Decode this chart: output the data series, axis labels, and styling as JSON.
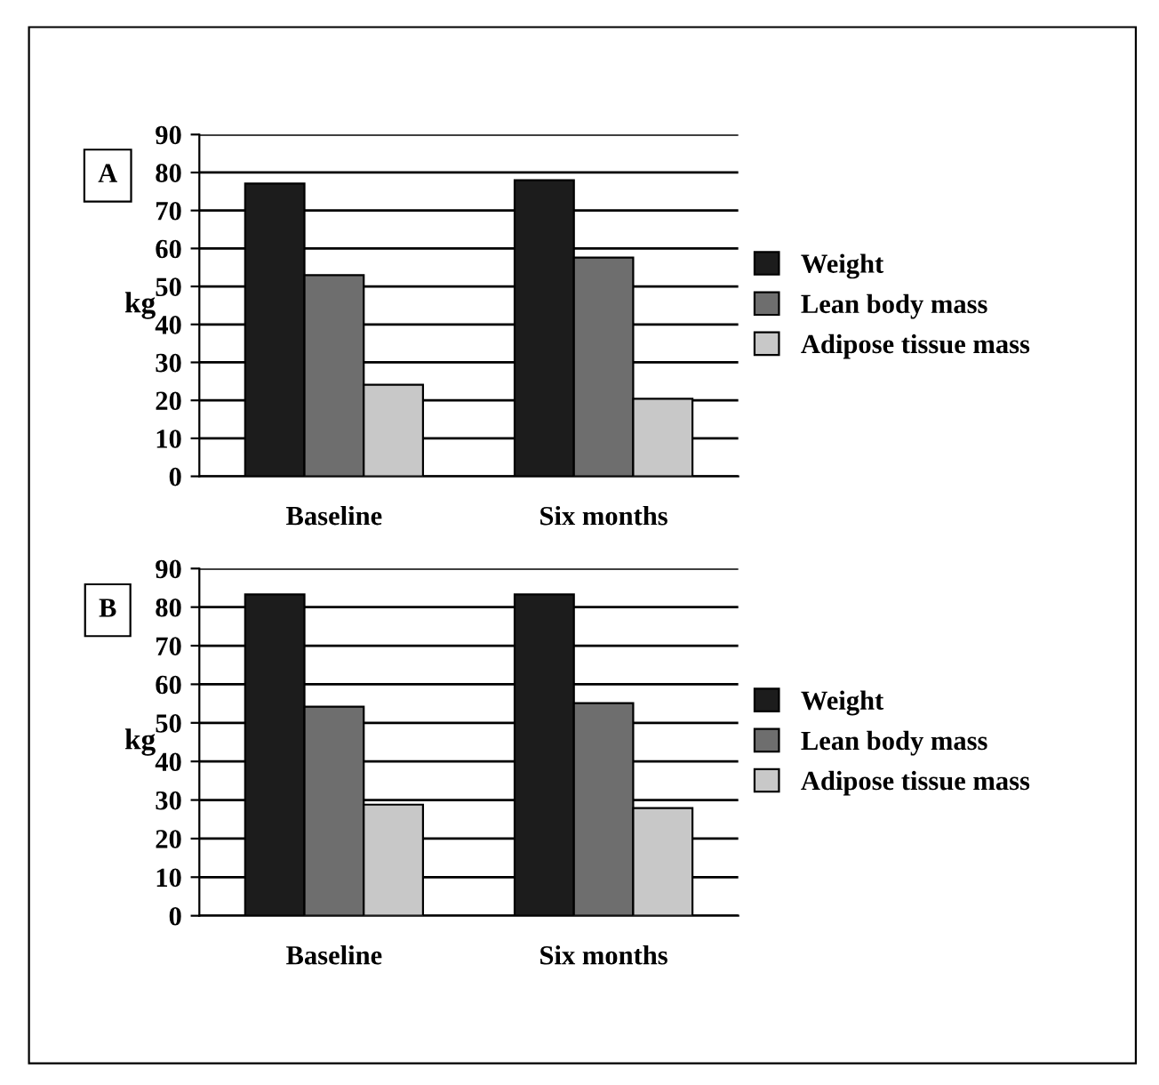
{
  "chart_data": [
    {
      "type": "bar",
      "title": "A",
      "ylabel": "kg",
      "categories": [
        "Baseline",
        "Six months"
      ],
      "series": [
        {
          "name": "Weight",
          "color": "#1c1c1c",
          "values": [
            77.1,
            78
          ]
        },
        {
          "name": "Lean body mass",
          "color": "#6e6e6e",
          "values": [
            53,
            57.6
          ]
        },
        {
          "name": "Adipose tissue mass",
          "color": "#c8c8c8",
          "values": [
            24.1,
            20.4
          ]
        }
      ],
      "ylim": [
        0,
        90
      ],
      "yticks": [
        0,
        10,
        20,
        30,
        40,
        50,
        60,
        70,
        80,
        90
      ],
      "grid": "y",
      "legend": "right"
    },
    {
      "type": "bar",
      "title": "B",
      "ylabel": "kg",
      "categories": [
        "Baseline",
        "Six months"
      ],
      "series": [
        {
          "name": "Weight",
          "color": "#1c1c1c",
          "values": [
            83.3,
            83.3
          ]
        },
        {
          "name": "Lean body mass",
          "color": "#6e6e6e",
          "values": [
            54.2,
            55.1
          ]
        },
        {
          "name": "Adipose tissue mass",
          "color": "#c8c8c8",
          "values": [
            28.8,
            27.9
          ]
        }
      ],
      "ylim": [
        0,
        90
      ],
      "yticks": [
        0,
        10,
        20,
        30,
        40,
        50,
        60,
        70,
        80,
        90
      ],
      "grid": "y",
      "legend": "right"
    }
  ]
}
